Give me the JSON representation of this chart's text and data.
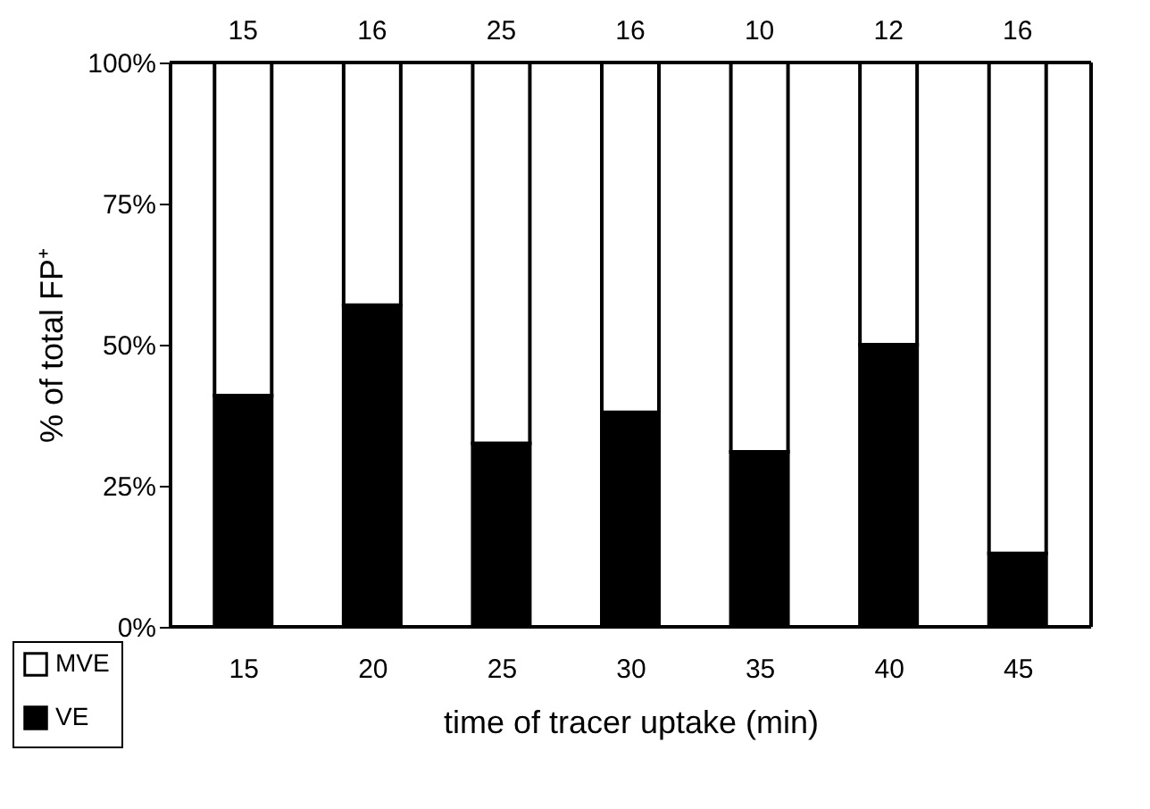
{
  "chart_data": {
    "type": "bar",
    "stacked": true,
    "categories": [
      "15",
      "20",
      "25",
      "30",
      "35",
      "40",
      "45"
    ],
    "series": [
      {
        "name": "VE",
        "color": "#000000",
        "values": [
          41,
          57,
          32.5,
          38,
          31,
          50,
          13
        ]
      },
      {
        "name": "MVE",
        "color": "#ffffff",
        "values": [
          59,
          43,
          67.5,
          62,
          69,
          50,
          87
        ]
      }
    ],
    "annotations": [
      "15",
      "16",
      "25",
      "16",
      "10",
      "12",
      "16"
    ],
    "xlabel": "time of tracer uptake (min)",
    "ylabel": "% of total FP⁺",
    "ylim": [
      0,
      100
    ],
    "yticks": [
      {
        "value": 0,
        "label": "0%"
      },
      {
        "value": 25,
        "label": "25%"
      },
      {
        "value": 50,
        "label": "50%"
      },
      {
        "value": 75,
        "label": "75%"
      },
      {
        "value": 100,
        "label": "100%"
      }
    ],
    "grid": false,
    "legend": "bottom left"
  }
}
